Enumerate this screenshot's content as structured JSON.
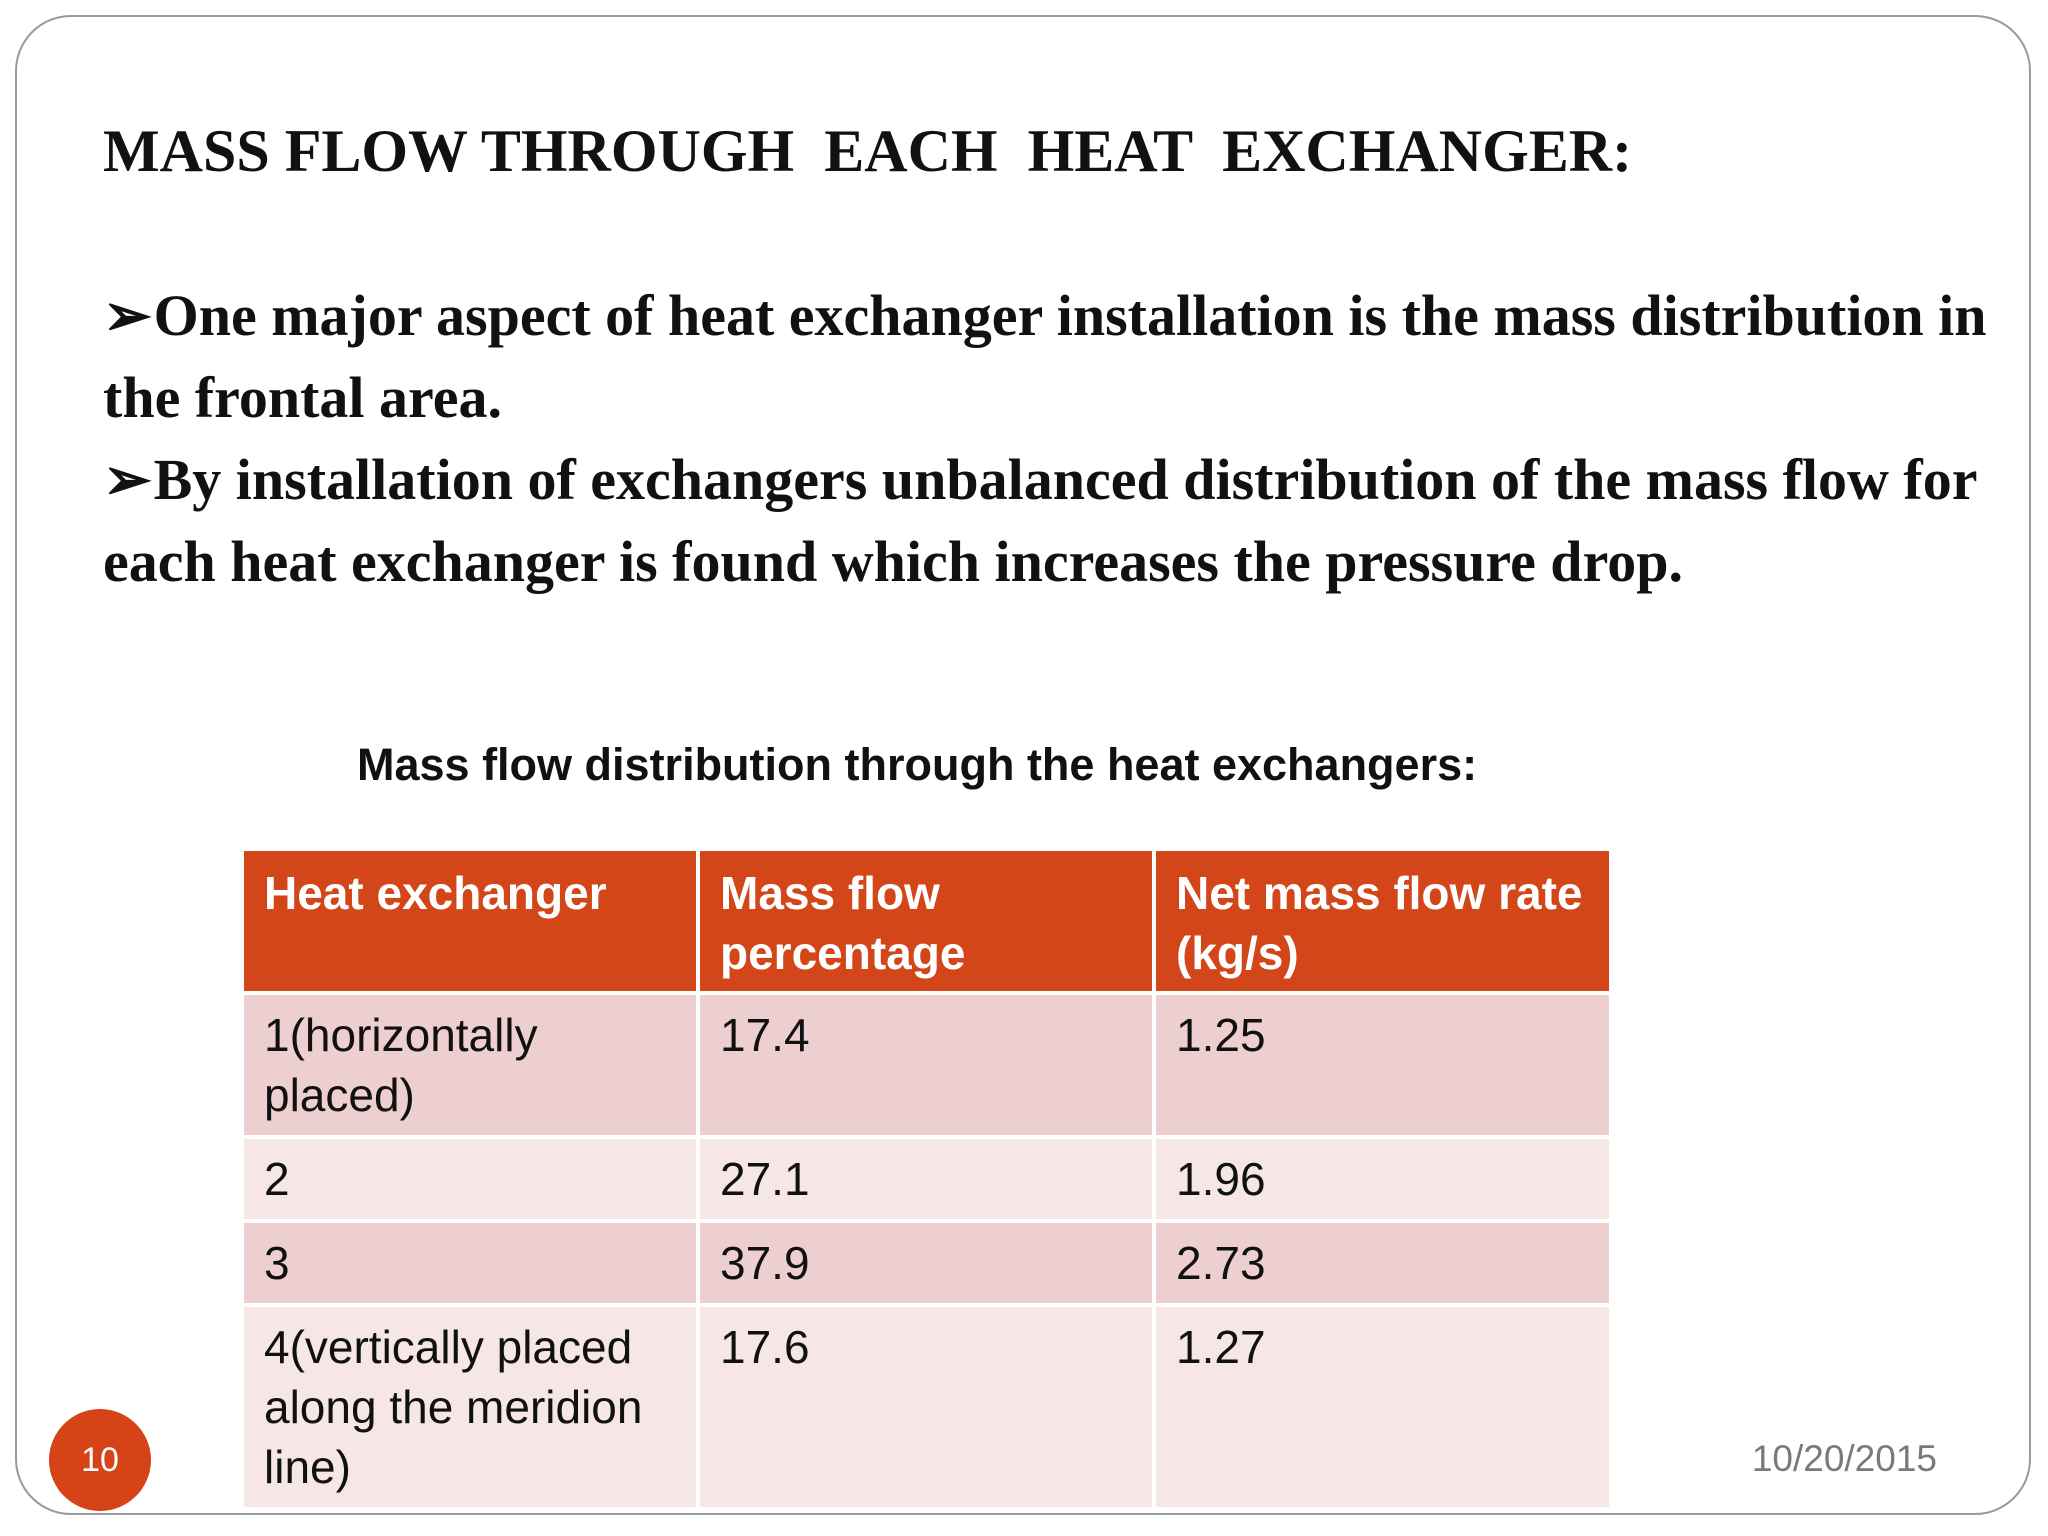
{
  "slide": {
    "title": "MASS FLOW THROUGH  EACH  HEAT  EXCHANGER:",
    "bullet_marker": "➢",
    "bullets": [
      "One major aspect of heat exchanger installation is the mass distribution in the frontal area.",
      "By installation of exchangers unbalanced distribution of the mass flow for each heat exchanger is found which increases the pressure drop."
    ],
    "table_caption": "Mass flow distribution through the heat exchangers:",
    "table": {
      "headers": [
        "Heat exchanger",
        "Mass flow percentage",
        "Net mass flow rate        (kg/s)"
      ],
      "rows": [
        [
          "1(horizontally placed)",
          "17.4",
          "1.25"
        ],
        [
          "2",
          "27.1",
          "1.96"
        ],
        [
          "3",
          "37.9",
          "2.73"
        ],
        [
          "4(vertically placed along the meridion line)",
          "17.6",
          "1.27"
        ]
      ]
    },
    "page_number": "10",
    "date": "10/20/2015",
    "colors": {
      "header_fill": "#d2461a",
      "row_odd_fill": "#eecfcf",
      "row_even_fill": "#f6e7e6",
      "page_badge": "#d64317"
    }
  }
}
